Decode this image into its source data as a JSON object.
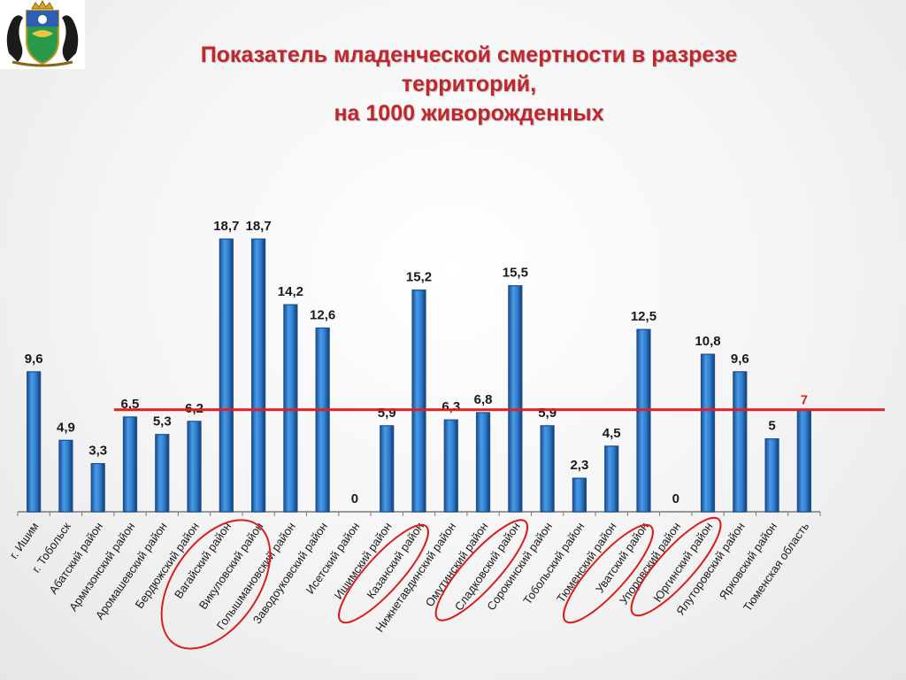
{
  "title": {
    "line1": "Показатель младенческой смертности в разрезе",
    "line2": "территорий,",
    "line3": "на 1000 живорожденных"
  },
  "emblem": {
    "icon": "coat-of-arms-icon"
  },
  "colors": {
    "title": "#c0272d",
    "bar": "#2f7fd0",
    "bar_dark": "#1a4f90",
    "reference_line": "#e02020",
    "highlight_circle": "#d81e1e"
  },
  "chart_data": {
    "type": "bar",
    "categories": [
      "г. Ишим",
      "г. Тобольск",
      "Абатский район",
      "Армизонский район",
      "Аромашевский район",
      "Бердюжский район",
      "Вагайский район",
      "Викуловский район",
      "Голышмановский район",
      "Заводоуковский район",
      "Исетский район",
      "Ишимский район",
      "Казанский район",
      "Нижнетавдинский район",
      "Омутинский район",
      "Сладковский район",
      "Сорокинский район",
      "Тобольский район",
      "Тюменский район",
      "Уватский район",
      "Упоровский район",
      "Юргинский район",
      "Ялуторовский район",
      "Ярковский район",
      "Тюменская область"
    ],
    "values": [
      9.6,
      4.9,
      3.3,
      6.5,
      5.3,
      6.2,
      18.7,
      18.7,
      14.2,
      12.6,
      0,
      5.9,
      15.2,
      6.3,
      6.8,
      15.5,
      5.9,
      2.3,
      4.5,
      12.5,
      0,
      10.8,
      9.6,
      5,
      7
    ],
    "labels": [
      "9,6",
      "4,9",
      "3,3",
      "6,5",
      "5,3",
      "6,2",
      "18,7",
      "18,7",
      "14,2",
      "12,6",
      "0",
      "5,9",
      "15,2",
      "6,3",
      "6,8",
      "15,5",
      "5,9",
      "2,3",
      "4,5",
      "12,5",
      "0",
      "10,8",
      "9,6",
      "5",
      "7"
    ],
    "reference_value": 7,
    "reference_label": "7",
    "ylim": [
      0,
      19
    ],
    "grid": false,
    "legend": "none",
    "highlighted_categories": [
      "Вагайский район",
      "Викуловский район",
      "Казанский район",
      "Сладковский район",
      "Уватский район",
      "Юргинский район"
    ]
  }
}
